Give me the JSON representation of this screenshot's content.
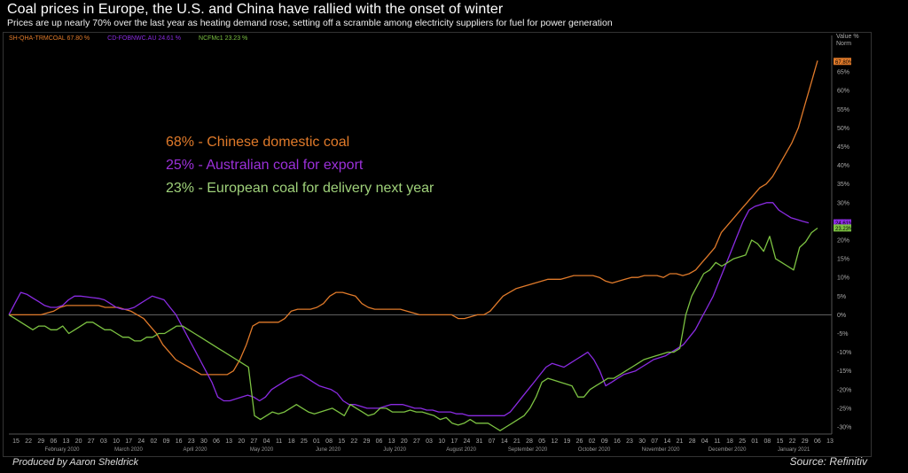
{
  "header": {
    "title": "Coal prices in Europe, the U.S. and China have rallied with the onset of winter",
    "subtitle": "Prices are up nearly 70% over the last year as heating demand rose, setting off a scramble among electricity suppliers for fuel for power generation"
  },
  "legend_top": [
    {
      "label": "SH-QHA-TRMCOAL 67.80 %",
      "color": "#e07a2a"
    },
    {
      "label": "CD-FOBNWC.AU 24.61 %",
      "color": "#8a2be2"
    },
    {
      "label": "NCFMc1 23.23 %",
      "color": "#7cc242"
    }
  ],
  "axis_header": {
    "line1": "Value %",
    "line2": "Norm"
  },
  "annotations": [
    {
      "text": "68% - Chinese domestic coal",
      "color": "#e07a2a"
    },
    {
      "text": "25% - Australian coal for export",
      "color": "#9b30d9"
    },
    {
      "text": "23% - European coal for delivery next year",
      "color": "#9fd17a"
    }
  ],
  "footer": {
    "left": "Produced by Aaron Sheldrick",
    "right": "Source: Refinitiv"
  },
  "chart_data": {
    "type": "line",
    "ylim": [
      -30,
      70
    ],
    "yticks": [
      -30,
      -25,
      -20,
      -15,
      -10,
      -5,
      0,
      5,
      10,
      15,
      20,
      25,
      30,
      35,
      40,
      45,
      50,
      55,
      60,
      65
    ],
    "day_ticks": [
      "15",
      "22",
      "29",
      "06",
      "13",
      "20",
      "27",
      "03",
      "10",
      "17",
      "24",
      "02",
      "09",
      "16",
      "23",
      "30",
      "06",
      "13",
      "20",
      "27",
      "04",
      "11",
      "18",
      "25",
      "01",
      "08",
      "15",
      "22",
      "29",
      "06",
      "13",
      "20",
      "27",
      "03",
      "10",
      "17",
      "24",
      "31",
      "07",
      "14",
      "21",
      "28",
      "05",
      "12",
      "19",
      "26",
      "02",
      "09",
      "16",
      "23",
      "30",
      "07",
      "14",
      "21",
      "28",
      "04",
      "11",
      "18",
      "25",
      "01",
      "08",
      "15",
      "22",
      "29",
      "06",
      "13"
    ],
    "month_labels": [
      "February 2020",
      "March 2020",
      "April 2020",
      "May 2020",
      "June 2020",
      "July 2020",
      "August 2020",
      "September 2020",
      "October 2020",
      "November 2020",
      "December 2020",
      "January 2021"
    ],
    "last_values": {
      "SH-QHA-TRMCOAL": 67.8,
      "CD-FOBNWC.AU": 24.61,
      "NCFMc1": 23.23
    },
    "series": [
      {
        "name": "SH-QHA-TRMCOAL",
        "color": "#e07a2a",
        "values": [
          0,
          0,
          0,
          0,
          0,
          0,
          0.5,
          1,
          2,
          2.5,
          2.5,
          2.5,
          2.5,
          2.5,
          2.5,
          2,
          2,
          2,
          1.5,
          1,
          0,
          -1,
          -3,
          -5,
          -8,
          -10,
          -12,
          -13,
          -14,
          -15,
          -16,
          -16,
          -16,
          -16,
          -16,
          -15,
          -12,
          -8,
          -3,
          -2,
          -2,
          -2,
          -2,
          -1,
          1,
          1.5,
          1.5,
          1.5,
          2,
          3,
          5,
          6,
          6,
          5.5,
          5,
          3,
          2,
          1.5,
          1.5,
          1.5,
          1.5,
          1.5,
          1,
          0.5,
          0,
          0,
          0,
          0,
          0,
          0,
          -1,
          -1,
          -0.5,
          0,
          0,
          1,
          3,
          5,
          6,
          7,
          7.5,
          8,
          8.5,
          9,
          9.5,
          9.5,
          9.5,
          10,
          10.5,
          10.5,
          10.5,
          10.5,
          10,
          9,
          8.5,
          9,
          9.5,
          10,
          10,
          10.5,
          10.5,
          10.5,
          10,
          11,
          11,
          10.5,
          11,
          12,
          14,
          16,
          18,
          22,
          24,
          26,
          28,
          30,
          32,
          34,
          35,
          37,
          40,
          43,
          46,
          50,
          56,
          62,
          68
        ]
      },
      {
        "name": "CD-FOBNWC.AU",
        "color": "#8a2be2",
        "values": [
          0,
          3,
          6,
          5.5,
          4.5,
          3.5,
          2.5,
          2,
          2,
          2.5,
          4,
          5,
          5,
          4.8,
          4.6,
          4.4,
          4,
          3,
          2,
          1.5,
          1.5,
          2,
          3,
          4,
          5,
          4.5,
          4,
          2,
          0,
          -3,
          -6,
          -9,
          -12,
          -15,
          -18,
          -22,
          -23,
          -23,
          -22.5,
          -22,
          -21.5,
          -22,
          -23,
          -22,
          -20,
          -19,
          -18,
          -17,
          -16.5,
          -16,
          -17,
          -18,
          -19,
          -19.5,
          -20,
          -21,
          -23,
          -24,
          -24,
          -24.5,
          -25,
          -25,
          -25,
          -24.5,
          -24,
          -24,
          -24,
          -24.5,
          -25,
          -25,
          -25.5,
          -25.5,
          -26,
          -26,
          -26,
          -26.5,
          -26.5,
          -27,
          -27,
          -27,
          -27,
          -27,
          -27,
          -27,
          -26,
          -24,
          -22,
          -20,
          -18,
          -16,
          -14,
          -13,
          -13.5,
          -14,
          -13,
          -12,
          -11,
          -10,
          -12,
          -15,
          -19,
          -18,
          -17,
          -16,
          -15.5,
          -15,
          -14,
          -13,
          -12,
          -11.5,
          -11,
          -10,
          -9,
          -8,
          -6,
          -4,
          -1,
          2,
          5,
          9,
          13,
          17,
          21,
          25,
          28,
          29,
          29.5,
          30,
          30,
          28,
          27,
          26,
          25.5,
          25,
          24.6
        ]
      },
      {
        "name": "NCFMc1",
        "color": "#7cc242",
        "values": [
          0,
          -1,
          -2,
          -3,
          -4,
          -3,
          -3,
          -4,
          -4,
          -3,
          -5,
          -4,
          -3,
          -2,
          -2,
          -3,
          -4,
          -4,
          -5,
          -6,
          -6,
          -7,
          -7,
          -6,
          -6,
          -5,
          -5,
          -4,
          -3,
          -3,
          -4,
          -5,
          -6,
          -7,
          -8,
          -9,
          -10,
          -11,
          -12,
          -13,
          -14,
          -27,
          -28,
          -27,
          -26,
          -26.5,
          -26,
          -25,
          -24,
          -25,
          -26,
          -26.5,
          -26,
          -25.5,
          -25,
          -26,
          -27,
          -24,
          -25,
          -26,
          -27,
          -26.5,
          -25,
          -25,
          -26,
          -26,
          -26,
          -25.5,
          -26,
          -26,
          -26.5,
          -27,
          -28,
          -27.5,
          -29,
          -29.5,
          -29,
          -28,
          -29,
          -29,
          -29,
          -30,
          -31,
          -30,
          -29,
          -28,
          -27,
          -25,
          -22,
          -18,
          -17,
          -17.5,
          -18,
          -18.5,
          -19,
          -22,
          -22,
          -20,
          -19,
          -18,
          -17,
          -17,
          -16,
          -15,
          -14,
          -13,
          -12,
          -11.5,
          -11,
          -10.5,
          -10,
          -10,
          -9,
          0,
          5,
          8,
          11,
          12,
          14,
          13,
          14,
          15,
          15.5,
          16,
          20,
          19,
          17,
          21,
          15,
          14,
          13,
          12,
          18,
          19.5,
          22,
          23.2
        ]
      }
    ]
  }
}
